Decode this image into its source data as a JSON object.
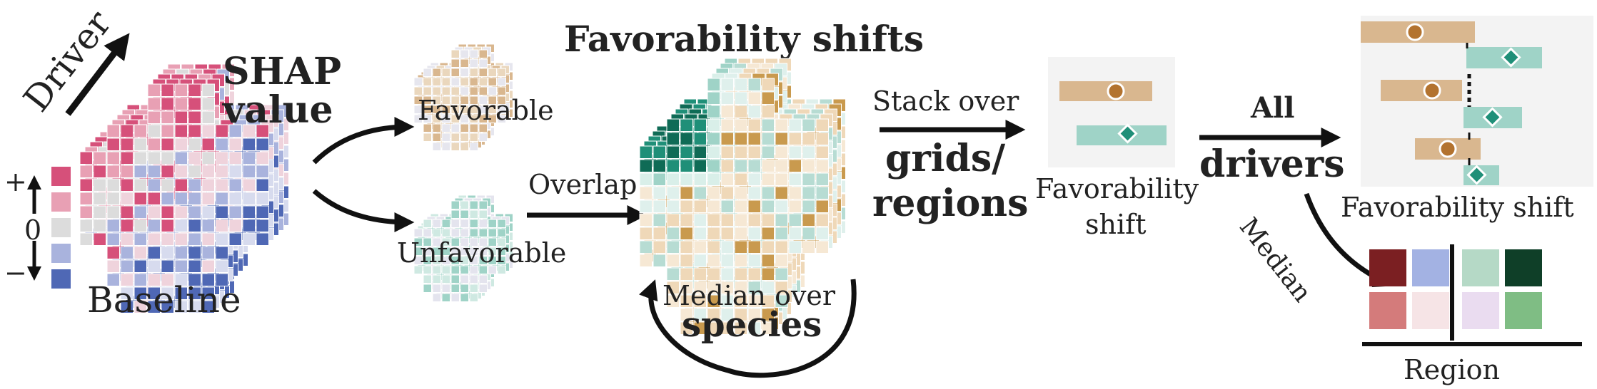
{
  "labels": {
    "driver": "Driver",
    "shap_line1": "SHAP",
    "shap_line2": "value",
    "plus": "+",
    "zero": "0",
    "minus": "−",
    "baseline": "Baseline",
    "favorable": "Favorable",
    "unfavorable": "Unfavorable",
    "title": "Favorability shifts",
    "overlap": "Overlap",
    "median_over": "Median over",
    "species": "species",
    "stack_over": "Stack over",
    "grids": "grids/",
    "regions": "regions",
    "fav_shift_small_1": "Favorability",
    "fav_shift_small_2": "shift",
    "all": "All",
    "drivers": "drivers",
    "fav_shift_big": "Favorability shift",
    "median": "Median",
    "region": "Region"
  },
  "colors": {
    "favorable": "#d9b78f",
    "unfavorable": "#9fd3c7",
    "marker_fav": "#b3732f",
    "marker_unfav": "#1f8f78",
    "pos_strong": "#d6507a",
    "pos_light": "#e8a0b4",
    "neutral": "#dcdcdc",
    "neg_light": "#a9b3dd",
    "neg_strong": "#4f68b5",
    "panel_bg": "#f3f3f3"
  },
  "region_grid": [
    [
      "#7b1f22",
      "#a3b2e3",
      "#b5d9c6",
      "#0f3f28"
    ],
    [
      "#d47b7b",
      "#f6e4e6",
      "#eadcf0",
      "#7fbd84"
    ]
  ],
  "icons": [
    "arrow-icon",
    "curved-arrow-icon",
    "circular-arrow-icon"
  ]
}
